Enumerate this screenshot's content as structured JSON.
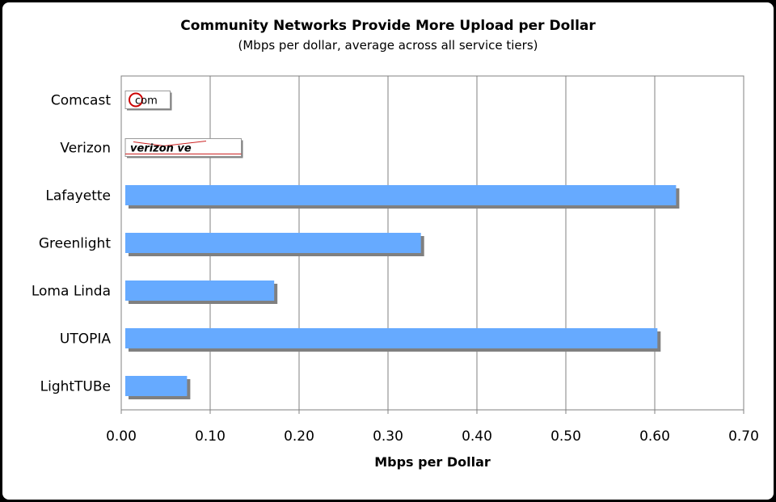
{
  "chart_data": {
    "type": "bar",
    "orientation": "horizontal",
    "title": "Community Networks Provide More Upload per Dollar",
    "subtitle": "(Mbps per dollar, average across all service tiers)",
    "xlabel": "Mbps per Dollar",
    "xlim": [
      0,
      0.7
    ],
    "xticks": [
      "0.00",
      "0.10",
      "0.20",
      "0.30",
      "0.40",
      "0.50",
      "0.60",
      "0.70"
    ],
    "grid": "vertical",
    "categories": [
      "Comcast",
      "Verizon",
      "Lafayette",
      "Greenlight",
      "Loma Linda",
      "UTOPIA",
      "LightTUBe"
    ],
    "values": [
      0.055,
      0.135,
      0.624,
      0.337,
      0.172,
      0.603,
      0.074
    ],
    "logo_values": [
      0.055,
      0.135
    ],
    "logos": [
      {
        "name": "comcast-logo",
        "text": "com"
      },
      {
        "name": "verizon-logo",
        "text": "verizon ve"
      }
    ],
    "bar_color": "#66aaff",
    "shadow_color": "#808080",
    "grid_color": "#808080"
  }
}
